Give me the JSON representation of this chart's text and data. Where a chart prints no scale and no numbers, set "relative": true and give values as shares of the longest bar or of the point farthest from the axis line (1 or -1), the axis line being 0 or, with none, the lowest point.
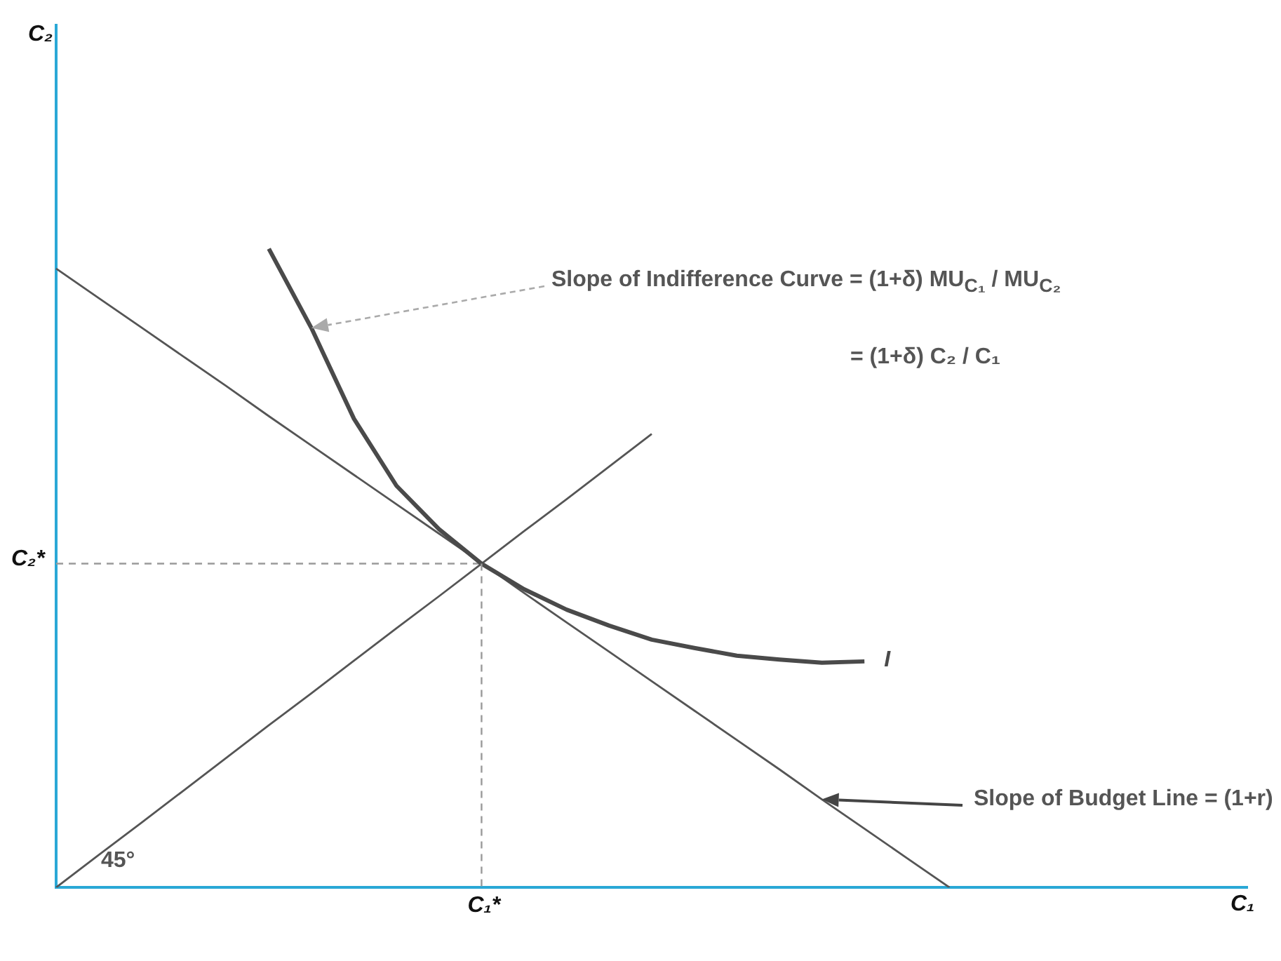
{
  "chart_data": {
    "type": "line",
    "relative": true,
    "xlabel": "C₁",
    "grid": false,
    "legend": false,
    "marker": "none",
    "categories": [
      null,
      null,
      null,
      null,
      null,
      null,
      null,
      null,
      null,
      null,
      null,
      null,
      null,
      null,
      null,
      null,
      null,
      null,
      null,
      null,
      null,
      null,
      null,
      null,
      null,
      null,
      null,
      null,
      null
    ],
    "series": [
      {
        "name": "I",
        "color": "#4a4a4a",
        "values": [
          null,
          null,
          null,
          null,
          null,
          1.0,
          0.876,
          0.734,
          0.629,
          0.561,
          0.507,
          0.467,
          0.435,
          0.41,
          0.388,
          0.375,
          0.363,
          0.357,
          0.352,
          0.354,
          null,
          null,
          null,
          null,
          null,
          null,
          null,
          null,
          null
        ]
      },
      {
        "color": "#555555",
        "values": [
          0.969,
          0.923,
          0.877,
          0.831,
          0.785,
          0.738,
          0.692,
          0.646,
          0.6,
          0.554,
          0.508,
          0.461,
          0.415,
          0.369,
          0.323,
          0.277,
          0.231,
          0.185,
          0.138,
          0.092,
          0.046,
          0,
          null,
          null,
          null,
          null,
          null,
          null,
          null
        ]
      },
      {
        "color": "#555555",
        "values": [
          0,
          0.051,
          0.101,
          0.152,
          0.203,
          0.254,
          0.304,
          0.355,
          0.406,
          0.456,
          0.507,
          0.558,
          0.608,
          0.659,
          0.71,
          null,
          null,
          null,
          null,
          null,
          null,
          null,
          null,
          null,
          null,
          null,
          null,
          null,
          null
        ]
      },
      {
        "color": "#9a9a9a",
        "line_style": "dashed",
        "values": [
          0.507,
          0.507,
          0.507,
          0.507,
          0.507,
          0.507,
          0.507,
          0.507,
          0.507,
          0.507,
          0.507,
          null,
          null,
          null,
          null,
          null,
          null,
          null,
          null,
          null,
          null,
          null,
          null,
          null,
          null,
          null,
          null,
          null,
          null
        ]
      }
    ],
    "annotations": [
      "Slope of Indifference Curve = (1+δ) MU$_{C₁}$ / MU$_{C₂}$",
      "= (1+δ) C₂ / C₁",
      "Slope of Budget Line = (1+r)",
      "45°",
      "C₁*",
      "C₂*",
      "C₂"
    ]
  }
}
